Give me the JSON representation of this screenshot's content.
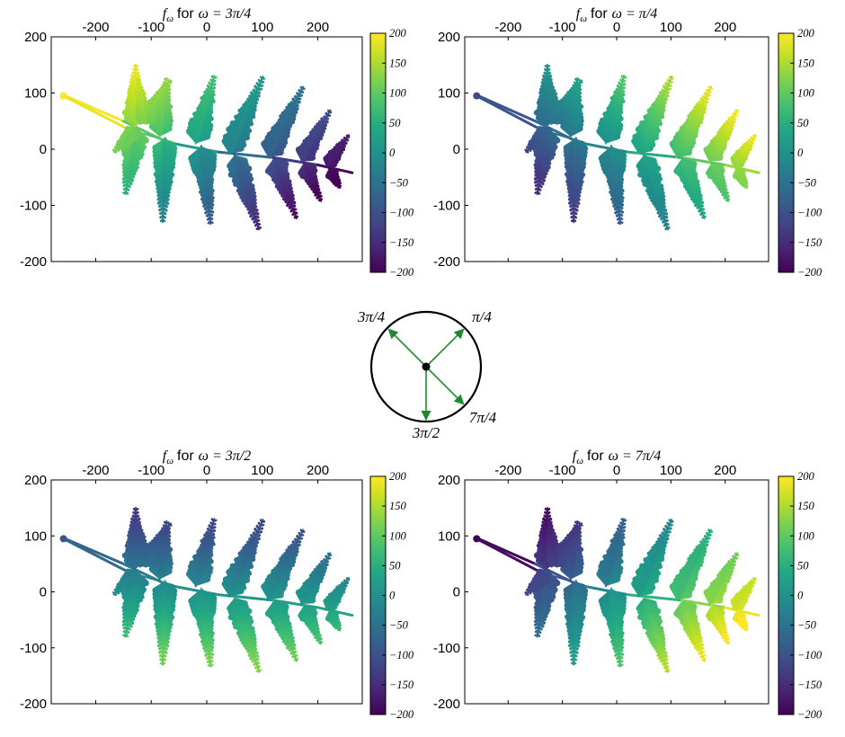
{
  "colors": {
    "viridis": [
      "#440154",
      "#482475",
      "#414487",
      "#355f8d",
      "#2a788e",
      "#21918c",
      "#22a884",
      "#44bf70",
      "#7ad151",
      "#bddf26",
      "#fde725"
    ],
    "arrow": "#1e8a2e",
    "frame": "#000000"
  },
  "chart_data": [
    {
      "type": "scatter",
      "title_prefix": "f",
      "title_sub": "ω",
      "title_for": "for",
      "title_math": "ω = 3π/4",
      "omega": 2.356,
      "xticks": [
        "-200",
        "-100",
        "0",
        "100",
        "200"
      ],
      "yticks": [
        "200",
        "100",
        "0",
        "-100",
        "-200"
      ],
      "xlim": [
        -280,
        280
      ],
      "ylim": [
        -200,
        200
      ],
      "colorbar": {
        "ticks": [
          "200",
          "150",
          "100",
          "50",
          "0",
          "−50",
          "−100",
          "−150",
          "−200"
        ],
        "range": [
          -200,
          200
        ]
      }
    },
    {
      "type": "scatter",
      "title_prefix": "f",
      "title_sub": "ω",
      "title_for": "for",
      "title_math": "ω = π/4",
      "omega": 0.785,
      "xticks": [
        "-200",
        "-100",
        "0",
        "100",
        "200"
      ],
      "yticks": [
        "200",
        "100",
        "0",
        "-100",
        "-200"
      ],
      "xlim": [
        -280,
        280
      ],
      "ylim": [
        -200,
        200
      ],
      "colorbar": {
        "ticks": [
          "200",
          "150",
          "100",
          "50",
          "0",
          "−50",
          "−100",
          "−150",
          "−200"
        ],
        "range": [
          -200,
          200
        ]
      }
    },
    {
      "type": "scatter",
      "title_prefix": "f",
      "title_sub": "ω",
      "title_for": "for",
      "title_math": "ω = 3π/2",
      "omega": 4.712,
      "xticks": [
        "-200",
        "-100",
        "0",
        "100",
        "200"
      ],
      "yticks": [
        "200",
        "100",
        "0",
        "-100",
        "-200"
      ],
      "xlim": [
        -280,
        280
      ],
      "ylim": [
        -200,
        200
      ],
      "colorbar": {
        "ticks": [
          "200",
          "150",
          "100",
          "50",
          "0",
          "−50",
          "−100",
          "−150",
          "−200"
        ],
        "range": [
          -200,
          200
        ]
      }
    },
    {
      "type": "scatter",
      "title_prefix": "f",
      "title_sub": "ω",
      "title_for": "for",
      "title_math": "ω = 7π/4",
      "omega": 5.498,
      "xticks": [
        "-200",
        "-100",
        "0",
        "100",
        "200"
      ],
      "yticks": [
        "200",
        "100",
        "0",
        "-100",
        "-200"
      ],
      "xlim": [
        -280,
        280
      ],
      "ylim": [
        -200,
        200
      ],
      "colorbar": {
        "ticks": [
          "200",
          "150",
          "100",
          "50",
          "0",
          "−50",
          "−100",
          "−150",
          "−200"
        ],
        "range": [
          -200,
          200
        ]
      }
    }
  ],
  "direction_diagram": {
    "labels": [
      "3π/4",
      "π/4",
      "3π/2",
      "7π/4"
    ],
    "angles": [
      2.356,
      0.785,
      4.712,
      5.498
    ]
  }
}
